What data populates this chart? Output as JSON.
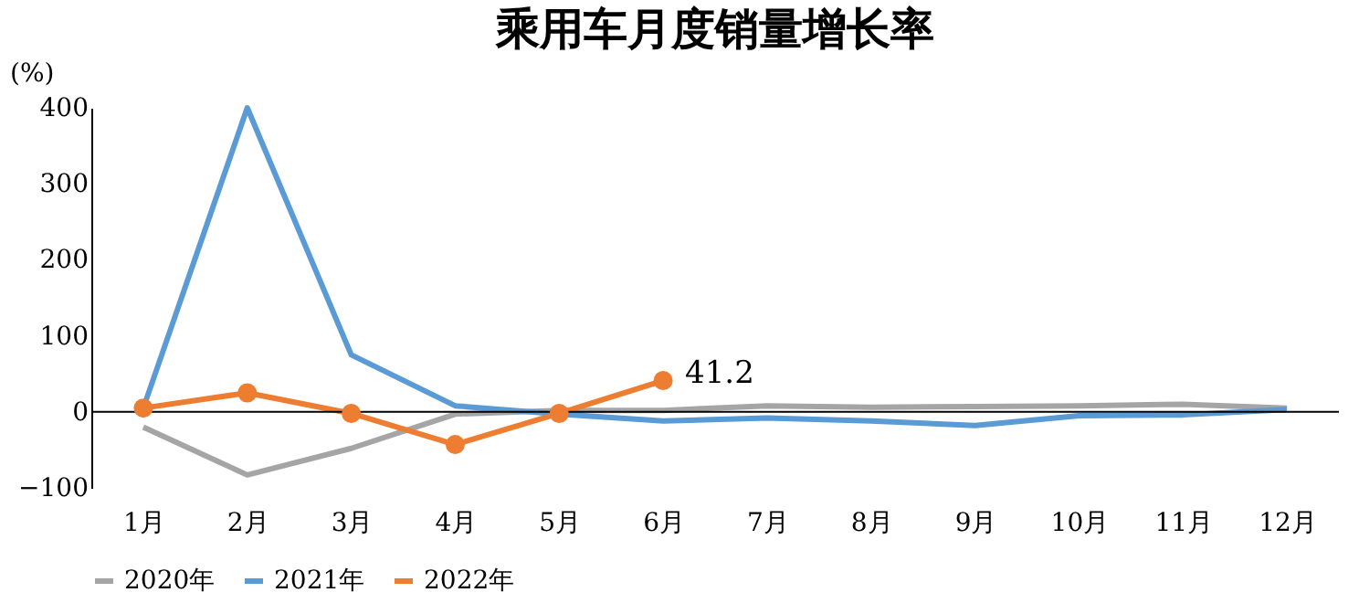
{
  "chart_data": {
    "type": "line",
    "title": "乘用车月度销量增长率",
    "ylabel": "(%)",
    "categories": [
      "1月",
      "2月",
      "3月",
      "4月",
      "5月",
      "6月",
      "7月",
      "8月",
      "9月",
      "10月",
      "11月",
      "12月"
    ],
    "series": [
      {
        "name": "2020年",
        "color": "#a5a5a5",
        "values": [
          -20,
          -83,
          -48,
          -3,
          2,
          2,
          8,
          6,
          7,
          8,
          10,
          5
        ]
      },
      {
        "name": "2021年",
        "color": "#5b9bd5",
        "values": [
          5,
          400,
          75,
          8,
          -3,
          -12,
          -8,
          -12,
          -18,
          -5,
          -4,
          3
        ]
      },
      {
        "name": "2022年",
        "color": "#ed7d31",
        "marker": "circle",
        "values": [
          5,
          25,
          -2,
          -43,
          -2,
          41.2,
          null,
          null,
          null,
          null,
          null,
          null
        ],
        "value_labels": [
          null,
          null,
          null,
          null,
          null,
          "41.2",
          null,
          null,
          null,
          null,
          null,
          null
        ]
      }
    ],
    "ylim": [
      -100,
      400
    ],
    "yticks": [
      -100,
      0,
      100,
      200,
      300,
      400
    ],
    "grid": false,
    "ref_lines": [
      {
        "axis": "y",
        "value": 0,
        "color": "#000000",
        "line_style": "solid"
      }
    ],
    "legend": "bottom"
  }
}
